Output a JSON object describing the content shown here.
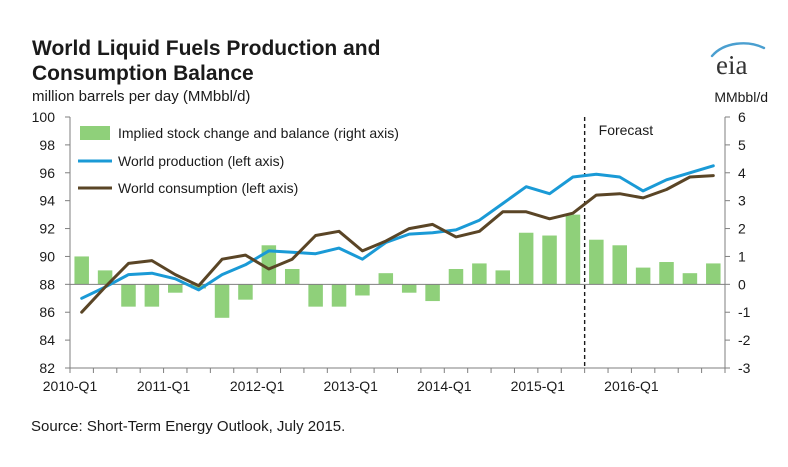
{
  "title": "World Liquid Fuels Production and Consumption Balance",
  "subtitle": "million barrels per day (MMbbl/d)",
  "right_unit": "MMbbl/d",
  "source": "Source: Short-Term Energy Outlook, July 2015.",
  "logo_text": "eia",
  "forecast_label": "Forecast",
  "colors": {
    "production": "#1a9ad6",
    "consumption": "#5a4526",
    "bars": "#8fd07a",
    "axis": "#7f7f7f"
  },
  "chart_data": {
    "type": "bar+line",
    "categories": [
      "2010-Q1",
      "2010-Q2",
      "2010-Q3",
      "2010-Q4",
      "2011-Q1",
      "2011-Q2",
      "2011-Q3",
      "2011-Q4",
      "2012-Q1",
      "2012-Q2",
      "2012-Q3",
      "2012-Q4",
      "2013-Q1",
      "2013-Q2",
      "2013-Q3",
      "2013-Q4",
      "2014-Q1",
      "2014-Q2",
      "2014-Q3",
      "2014-Q4",
      "2015-Q1",
      "2015-Q2",
      "2015-Q3",
      "2015-Q4",
      "2016-Q1",
      "2016-Q2",
      "2016-Q3",
      "2016-Q4"
    ],
    "x_tick_labels": [
      "2010-Q1",
      "2011-Q1",
      "2012-Q1",
      "2013-Q1",
      "2014-Q1",
      "2015-Q1",
      "2016-Q1"
    ],
    "left_axis": {
      "range": [
        82,
        100
      ],
      "ticks": [
        82,
        84,
        86,
        88,
        90,
        92,
        94,
        96,
        98,
        100
      ]
    },
    "right_axis": {
      "label": "MMbbl/d",
      "range": [
        -3,
        6
      ],
      "ticks": [
        -3,
        -2,
        -1,
        0,
        1,
        2,
        3,
        4,
        5,
        6
      ]
    },
    "forecast_start_after": "2015-Q2",
    "legend": {
      "placement": "top-left"
    },
    "series": [
      {
        "name": "Implied stock change and balance (right axis)",
        "type": "bar",
        "axis": "right",
        "values": [
          1.0,
          0.5,
          -0.8,
          -0.8,
          -0.3,
          -0.15,
          -1.2,
          -0.55,
          1.4,
          0.55,
          -0.8,
          -0.8,
          -0.4,
          0.4,
          -0.3,
          -0.6,
          0.55,
          0.75,
          0.5,
          1.85,
          1.75,
          2.5,
          1.6,
          1.4,
          0.6,
          0.8,
          0.4,
          0.75
        ]
      },
      {
        "name": "World production (left axis)",
        "type": "line",
        "axis": "left",
        "values": [
          87.0,
          87.8,
          88.7,
          88.8,
          88.4,
          87.6,
          88.7,
          89.4,
          90.4,
          90.3,
          90.2,
          90.6,
          89.8,
          91.0,
          91.6,
          91.7,
          91.9,
          92.6,
          93.8,
          95.0,
          94.5,
          95.7,
          95.9,
          95.7,
          94.7,
          95.5,
          96.0,
          96.5
        ]
      },
      {
        "name": "World consumption (left axis)",
        "type": "line",
        "axis": "left",
        "values": [
          86.0,
          87.8,
          89.5,
          89.7,
          88.7,
          87.9,
          89.8,
          90.1,
          89.1,
          89.8,
          91.5,
          91.8,
          90.4,
          91.1,
          92.0,
          92.3,
          91.4,
          91.8,
          93.2,
          93.2,
          92.7,
          93.1,
          94.4,
          94.5,
          94.2,
          94.8,
          95.7,
          95.8
        ]
      }
    ]
  }
}
